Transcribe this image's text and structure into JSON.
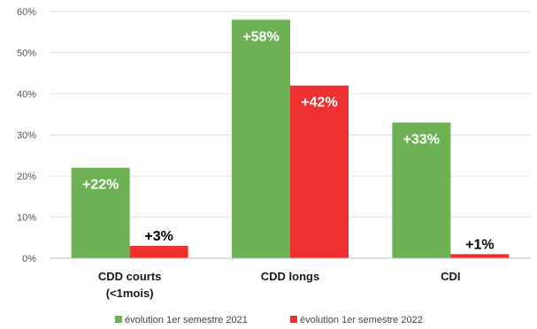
{
  "chart_data": {
    "type": "bar",
    "categories": [
      [
        "CDD courts",
        "(<1mois)"
      ],
      [
        "CDD longs"
      ],
      [
        "CDI"
      ]
    ],
    "series": [
      {
        "name": "évolution 1er semestre 2021",
        "values": [
          22,
          58,
          33
        ],
        "labels": [
          "+22%",
          "+58%",
          "+33%"
        ],
        "color": "#6cb254"
      },
      {
        "name": "évolution 1er semestre 2022",
        "values": [
          3,
          42,
          1
        ],
        "labels": [
          "+3%",
          "+42%",
          "+1%"
        ],
        "color": "#ee3130"
      }
    ],
    "yticks": [
      "0%",
      "10%",
      "20%",
      "30%",
      "40%",
      "50%",
      "60%"
    ],
    "ylim": [
      0,
      60
    ],
    "grid": true,
    "legend": "bottom"
  }
}
